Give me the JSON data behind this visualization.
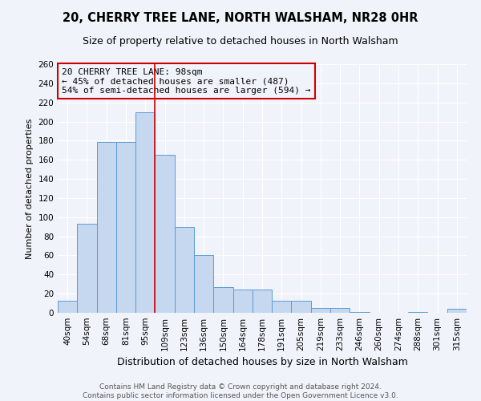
{
  "title": "20, CHERRY TREE LANE, NORTH WALSHAM, NR28 0HR",
  "subtitle": "Size of property relative to detached houses in North Walsham",
  "bar_labels": [
    "40sqm",
    "54sqm",
    "68sqm",
    "81sqm",
    "95sqm",
    "109sqm",
    "123sqm",
    "136sqm",
    "150sqm",
    "164sqm",
    "178sqm",
    "191sqm",
    "205sqm",
    "219sqm",
    "233sqm",
    "246sqm",
    "260sqm",
    "274sqm",
    "288sqm",
    "301sqm",
    "315sqm"
  ],
  "bar_heights": [
    13,
    93,
    179,
    179,
    210,
    165,
    90,
    60,
    27,
    24,
    24,
    13,
    13,
    5,
    5,
    1,
    0,
    0,
    1,
    0,
    4
  ],
  "bar_color": "#c5d8f0",
  "bar_edge_color": "#5b9bd5",
  "xlabel": "Distribution of detached houses by size in North Walsham",
  "ylabel": "Number of detached properties",
  "ylim": [
    0,
    260
  ],
  "yticks": [
    0,
    20,
    40,
    60,
    80,
    100,
    120,
    140,
    160,
    180,
    200,
    220,
    240,
    260
  ],
  "vline_x_index": 4,
  "vline_color": "#cc0000",
  "annotation_title": "20 CHERRY TREE LANE: 98sqm",
  "annotation_line1": "← 45% of detached houses are smaller (487)",
  "annotation_line2": "54% of semi-detached houses are larger (594) →",
  "annotation_box_color": "#cc0000",
  "footer_line1": "Contains HM Land Registry data © Crown copyright and database right 2024.",
  "footer_line2": "Contains public sector information licensed under the Open Government Licence v3.0.",
  "background_color": "#f0f4fa",
  "grid_color": "#ffffff",
  "title_fontsize": 10.5,
  "subtitle_fontsize": 9,
  "xlabel_fontsize": 9,
  "ylabel_fontsize": 8,
  "tick_fontsize": 7.5,
  "annotation_fontsize": 8,
  "footer_fontsize": 6.5
}
